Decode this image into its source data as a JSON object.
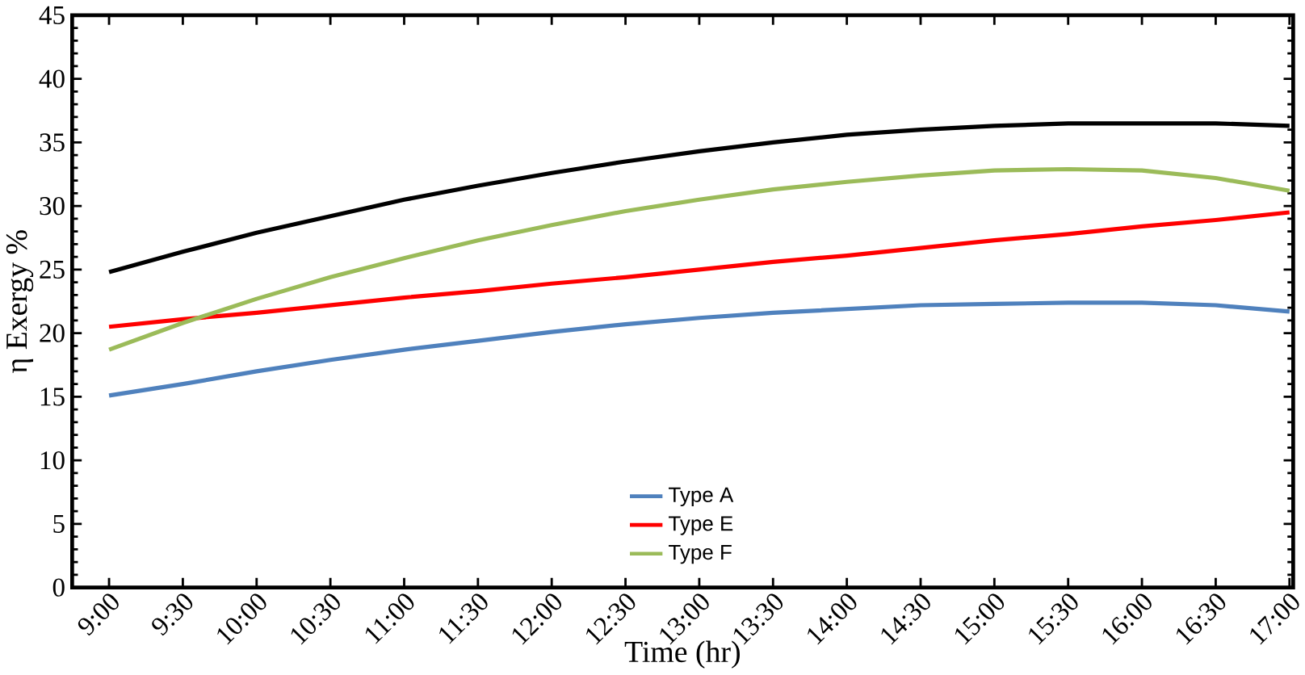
{
  "chart_data": {
    "type": "line",
    "xlabel": "Time (hr)",
    "ylabel": "η Exergy %",
    "categories": [
      "9:00",
      "9:30",
      "10:00",
      "10:30",
      "11:00",
      "11:30",
      "12:00",
      "12:30",
      "13:00",
      "13:30",
      "14:00",
      "14:30",
      "15:00",
      "15:30",
      "16:00",
      "16:30",
      "17:00"
    ],
    "series": [
      {
        "color": "#000000",
        "values": [
          24.8,
          26.4,
          27.9,
          29.2,
          30.5,
          31.6,
          32.6,
          33.5,
          34.3,
          35.0,
          35.6,
          36.0,
          36.3,
          36.5,
          36.5,
          36.5,
          36.3
        ]
      },
      {
        "name": "Type A",
        "color": "#4f81bd",
        "values": [
          15.1,
          16.0,
          17.0,
          17.9,
          18.7,
          19.4,
          20.1,
          20.7,
          21.2,
          21.6,
          21.9,
          22.2,
          22.3,
          22.4,
          22.4,
          22.2,
          21.7
        ]
      },
      {
        "name": "Type E",
        "color": "#ff0000",
        "values": [
          20.5,
          21.1,
          21.6,
          22.2,
          22.8,
          23.3,
          23.9,
          24.4,
          25.0,
          25.6,
          26.1,
          26.7,
          27.3,
          27.8,
          28.4,
          28.9,
          29.5
        ]
      },
      {
        "name": "Type F",
        "color": "#9bbb59",
        "values": [
          18.7,
          20.8,
          22.7,
          24.4,
          25.9,
          27.3,
          28.5,
          29.6,
          30.5,
          31.3,
          31.9,
          32.4,
          32.8,
          32.9,
          32.8,
          32.2,
          31.2
        ]
      }
    ],
    "ylim": [
      0,
      45
    ],
    "yticks": [
      0,
      5,
      10,
      15,
      20,
      25,
      30,
      35,
      40,
      45
    ],
    "legend": "bottom",
    "grid": false,
    "marker": "none",
    "line_style": "solid"
  }
}
